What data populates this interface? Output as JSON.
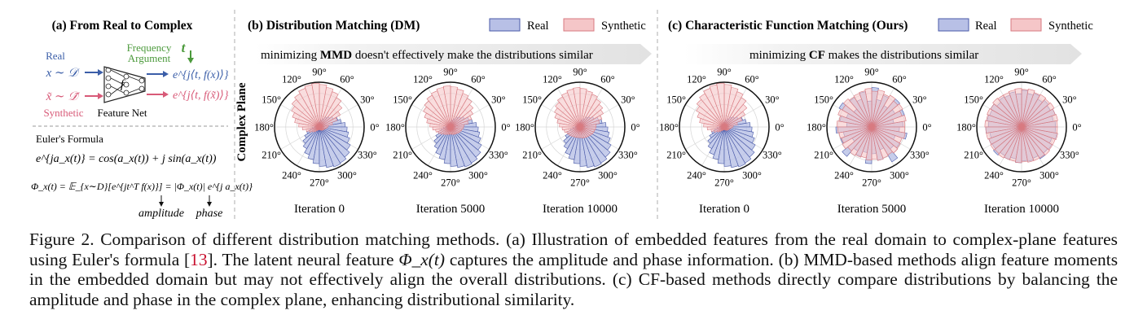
{
  "panels": {
    "a": {
      "title": "(a) From Real to Complex",
      "real_label": "Real",
      "synthetic_label": "Synthetic",
      "real_dist": "x ∼ 𝒟",
      "synth_dist": "x̃ ∼ 𝒟̃",
      "freq_line1": "Frequency",
      "freq_line2": "Argument",
      "freq_t": "t",
      "net_symbol": "f",
      "net_label": "Feature Net",
      "real_out": "e^{j⟨t, f(x)⟩}",
      "synth_out": "e^{j⟨t, f(x̃)⟩}",
      "euler_title": "Euler's Formula",
      "euler_eq": "e^{ja_x(t)} = cos(a_x(t)) + j sin(a_x(t))",
      "phi_eq": "Φ_x(t) = 𝔼_{x∼D}[e^{jt^T f(x)}] = |Φ_x(t)| e^{j a_x(t)}",
      "amp_label": "amplitude",
      "phase_label": "phase"
    },
    "b": {
      "title": "(b) Distribution Matching (DM)",
      "banner_pre": "minimizing ",
      "banner_bold": "MMD",
      "banner_post": " doesn't effectively make the distributions similar",
      "side_label": "Complex Plane"
    },
    "c": {
      "title": "(c) Characteristic Function Matching (Ours)",
      "banner_pre": "minimizing ",
      "banner_bold": "CF",
      "banner_post": " makes the distributions similar"
    }
  },
  "legend": {
    "real": "Real",
    "synthetic": "Synthetic"
  },
  "angle_labels": [
    "0°",
    "30°",
    "60°",
    "90°",
    "120°",
    "150°",
    "180°",
    "210°",
    "240°",
    "270°",
    "300°",
    "330°"
  ],
  "iterations": [
    "Iteration 0",
    "Iteration 5000",
    "Iteration 10000",
    "Iteration 0",
    "Iteration 5000",
    "Iteration 10000"
  ],
  "colors": {
    "real_fill": "#b8c0e6",
    "real_stroke": "#4a5aa8",
    "synth_fill": "#f5c6c8",
    "synth_stroke": "#d87a80",
    "freq_green": "#4c9a3c",
    "real_blue": "#3b5ea8",
    "synth_pink": "#d85a78"
  },
  "chart_data": [
    {
      "type": "polar-histogram",
      "label": "Iteration 0",
      "panel": "b",
      "bin_deg": 10,
      "series": [
        {
          "name": "Real",
          "values": [
            0.58,
            0.5,
            0.44,
            0.36,
            0.3,
            0.26,
            0.2,
            0.16,
            0.13,
            0.1,
            0.08,
            0.06,
            0.05,
            0.05,
            0.06,
            0.07,
            0.08,
            0.1,
            0.16,
            0.22,
            0.3,
            0.38,
            0.48,
            0.56,
            0.66,
            0.74,
            0.82,
            0.88,
            0.92,
            0.95,
            0.93,
            0.88,
            0.8,
            0.72,
            0.66,
            0.62
          ]
        },
        {
          "name": "Synthetic",
          "values": [
            0.2,
            0.3,
            0.42,
            0.54,
            0.66,
            0.76,
            0.84,
            0.9,
            0.95,
            0.98,
            0.96,
            0.92,
            0.86,
            0.8,
            0.72,
            0.64,
            0.56,
            0.46,
            0.38,
            0.3,
            0.24,
            0.18,
            0.14,
            0.1,
            0.08,
            0.07,
            0.06,
            0.06,
            0.07,
            0.08,
            0.09,
            0.1,
            0.11,
            0.12,
            0.14,
            0.17
          ]
        }
      ]
    },
    {
      "type": "polar-histogram",
      "label": "Iteration 5000",
      "panel": "b",
      "bin_deg": 10,
      "series": [
        {
          "name": "Real",
          "values": [
            0.58,
            0.5,
            0.44,
            0.36,
            0.3,
            0.26,
            0.2,
            0.16,
            0.13,
            0.1,
            0.08,
            0.06,
            0.05,
            0.05,
            0.06,
            0.07,
            0.08,
            0.1,
            0.16,
            0.22,
            0.3,
            0.38,
            0.48,
            0.56,
            0.66,
            0.74,
            0.82,
            0.88,
            0.92,
            0.95,
            0.93,
            0.88,
            0.8,
            0.72,
            0.66,
            0.62
          ]
        },
        {
          "name": "Synthetic",
          "values": [
            0.3,
            0.4,
            0.5,
            0.58,
            0.66,
            0.74,
            0.8,
            0.86,
            0.9,
            0.92,
            0.9,
            0.86,
            0.82,
            0.76,
            0.7,
            0.62,
            0.54,
            0.46,
            0.4,
            0.34,
            0.3,
            0.26,
            0.22,
            0.2,
            0.18,
            0.17,
            0.16,
            0.16,
            0.17,
            0.18,
            0.19,
            0.2,
            0.22,
            0.24,
            0.26,
            0.28
          ]
        }
      ]
    },
    {
      "type": "polar-histogram",
      "label": "Iteration 10000",
      "panel": "b",
      "bin_deg": 10,
      "series": [
        {
          "name": "Real",
          "values": [
            0.58,
            0.5,
            0.44,
            0.36,
            0.3,
            0.26,
            0.2,
            0.16,
            0.13,
            0.1,
            0.08,
            0.06,
            0.05,
            0.05,
            0.06,
            0.07,
            0.08,
            0.1,
            0.16,
            0.22,
            0.3,
            0.38,
            0.48,
            0.56,
            0.66,
            0.74,
            0.82,
            0.88,
            0.92,
            0.95,
            0.93,
            0.88,
            0.8,
            0.72,
            0.66,
            0.62
          ]
        },
        {
          "name": "Synthetic",
          "values": [
            0.36,
            0.44,
            0.52,
            0.6,
            0.66,
            0.72,
            0.78,
            0.82,
            0.86,
            0.88,
            0.86,
            0.82,
            0.78,
            0.72,
            0.66,
            0.6,
            0.52,
            0.46,
            0.4,
            0.36,
            0.32,
            0.3,
            0.28,
            0.26,
            0.25,
            0.24,
            0.24,
            0.24,
            0.25,
            0.26,
            0.27,
            0.28,
            0.3,
            0.32,
            0.33,
            0.35
          ]
        }
      ]
    },
    {
      "type": "polar-histogram",
      "label": "Iteration 0",
      "panel": "c",
      "bin_deg": 10,
      "series": [
        {
          "name": "Real",
          "values": [
            0.58,
            0.5,
            0.44,
            0.36,
            0.3,
            0.26,
            0.2,
            0.16,
            0.13,
            0.1,
            0.08,
            0.06,
            0.05,
            0.05,
            0.06,
            0.07,
            0.08,
            0.1,
            0.16,
            0.22,
            0.3,
            0.38,
            0.48,
            0.56,
            0.66,
            0.74,
            0.82,
            0.88,
            0.92,
            0.95,
            0.93,
            0.88,
            0.8,
            0.72,
            0.66,
            0.62
          ]
        },
        {
          "name": "Synthetic",
          "values": [
            0.2,
            0.3,
            0.42,
            0.54,
            0.66,
            0.76,
            0.84,
            0.9,
            0.95,
            0.98,
            0.96,
            0.92,
            0.86,
            0.8,
            0.72,
            0.64,
            0.56,
            0.46,
            0.38,
            0.3,
            0.24,
            0.18,
            0.14,
            0.1,
            0.08,
            0.07,
            0.06,
            0.06,
            0.07,
            0.08,
            0.09,
            0.1,
            0.11,
            0.12,
            0.14,
            0.17
          ]
        }
      ]
    },
    {
      "type": "polar-histogram",
      "label": "Iteration 5000",
      "panel": "c",
      "bin_deg": 10,
      "series": [
        {
          "name": "Real",
          "values": [
            0.7,
            0.5,
            0.78,
            0.6,
            0.82,
            0.55,
            0.75,
            0.62,
            0.88,
            0.58,
            0.8,
            0.66,
            0.76,
            0.52,
            0.84,
            0.6,
            0.72,
            0.56,
            0.8,
            0.64,
            0.74,
            0.5,
            0.86,
            0.62,
            0.7,
            0.58,
            0.82,
            0.6,
            0.76,
            0.54,
            0.9,
            0.64,
            0.72,
            0.56,
            0.8,
            0.62
          ]
        },
        {
          "name": "Synthetic",
          "values": [
            0.74,
            0.78,
            0.72,
            0.8,
            0.76,
            0.82,
            0.78,
            0.84,
            0.8,
            0.86,
            0.82,
            0.8,
            0.78,
            0.82,
            0.76,
            0.8,
            0.74,
            0.78,
            0.76,
            0.74,
            0.72,
            0.76,
            0.7,
            0.74,
            0.72,
            0.7,
            0.74,
            0.72,
            0.76,
            0.74,
            0.72,
            0.76,
            0.74,
            0.72,
            0.76,
            0.74
          ]
        }
      ]
    },
    {
      "type": "polar-histogram",
      "label": "Iteration 10000",
      "panel": "c",
      "bin_deg": 10,
      "series": [
        {
          "name": "Real",
          "values": [
            0.76,
            0.72,
            0.8,
            0.74,
            0.78,
            0.72,
            0.8,
            0.76,
            0.82,
            0.74,
            0.8,
            0.76,
            0.78,
            0.72,
            0.8,
            0.76,
            0.78,
            0.74,
            0.8,
            0.72,
            0.78,
            0.76,
            0.82,
            0.74,
            0.78,
            0.72,
            0.8,
            0.76,
            0.78,
            0.74,
            0.82,
            0.76,
            0.78,
            0.72,
            0.8,
            0.76
          ]
        },
        {
          "name": "Synthetic",
          "values": [
            0.8,
            0.82,
            0.8,
            0.84,
            0.82,
            0.84,
            0.82,
            0.86,
            0.84,
            0.86,
            0.84,
            0.82,
            0.82,
            0.84,
            0.8,
            0.82,
            0.8,
            0.82,
            0.8,
            0.8,
            0.78,
            0.8,
            0.78,
            0.8,
            0.78,
            0.78,
            0.8,
            0.78,
            0.8,
            0.8,
            0.8,
            0.82,
            0.8,
            0.8,
            0.82,
            0.8
          ]
        }
      ]
    }
  ],
  "caption": {
    "p1": "Figure 2. Comparison of different distribution matching methods. (a) Illustration of embedded features from the real domain to complex-plane features using Euler's formula [",
    "ref": "13",
    "p2": "]. The latent neural feature ",
    "math": "Φ_x(t)",
    "p3": " captures the amplitude and phase information. (b) MMD-based methods align feature moments in the embedded domain but may not effectively align the overall distributions. (c) CF-based methods directly compare distributions by balancing the amplitude and phase in the complex plane, enhancing distributional similarity."
  }
}
